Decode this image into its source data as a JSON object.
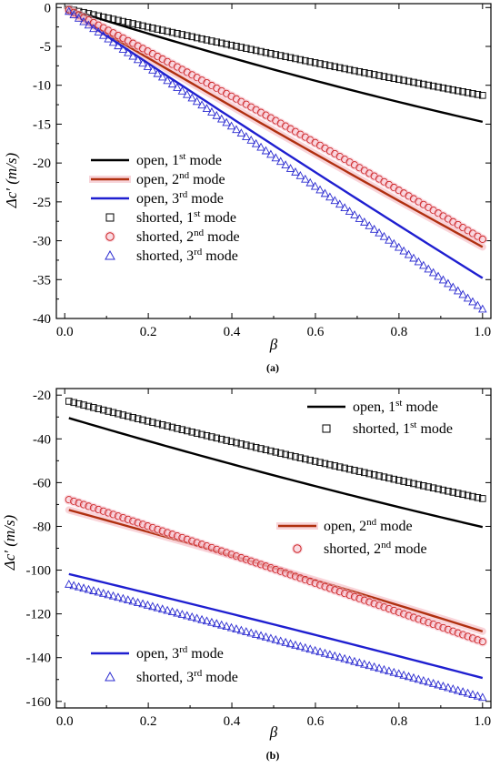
{
  "chart_data": [
    {
      "type": "line",
      "panel_label": "(a)",
      "xlabel": "β",
      "ylabel": "Δc′ (m/s)",
      "xlim": [
        -0.02,
        1.02
      ],
      "ylim": [
        -40,
        0.5
      ],
      "xticks": [
        0.0,
        0.2,
        0.4,
        0.6,
        0.8,
        1.0
      ],
      "xtick_labels": [
        "0.0",
        "0.2",
        "0.4",
        "0.6",
        "0.8",
        "1.0"
      ],
      "yticks": [
        0,
        -5,
        -10,
        -15,
        -20,
        -25,
        -30,
        -35,
        -40
      ],
      "ytick_labels": [
        "0",
        "-5",
        "-10",
        "-15",
        "-20",
        "-25",
        "-30",
        "-35",
        "-40"
      ],
      "grid": false,
      "legend_position": "lower-left",
      "series": [
        {
          "name": "open, 1st mode",
          "legend_base": "open, 1",
          "legend_sup": "st",
          "legend_tail": " mode",
          "style": "line",
          "color": "#000000",
          "x": [
            0.01,
            1.0
          ],
          "y": [
            -0.2,
            -14.7
          ],
          "curvature": -0.6
        },
        {
          "name": "open, 2nd mode",
          "legend_base": "open, 2",
          "legend_sup": "nd",
          "legend_tail": " mode",
          "style": "line",
          "color": "#b03010",
          "halo": "#f5b8c0",
          "x": [
            0.01,
            1.0
          ],
          "y": [
            -0.5,
            -30.8
          ],
          "curvature": -0.3
        },
        {
          "name": "open, 3rd mode",
          "legend_base": "open, 3",
          "legend_sup": "rd",
          "legend_tail": " mode",
          "style": "line",
          "color": "#1f1fd0",
          "x": [
            0.01,
            1.0
          ],
          "y": [
            -0.4,
            -34.8
          ],
          "curvature": -0.3
        },
        {
          "name": "shorted, 1st mode",
          "legend_base": "shorted, 1",
          "legend_sup": "st",
          "legend_tail": " mode",
          "style": "square",
          "color": "#000000",
          "x": [
            0.01,
            1.0
          ],
          "y": [
            -0.2,
            -11.3
          ],
          "curvature": -0.3,
          "count": 85
        },
        {
          "name": "shorted, 2nd mode",
          "legend_base": "shorted, 2",
          "legend_sup": "nd",
          "legend_tail": " mode",
          "style": "circle",
          "color": "#cc2222",
          "halo": "#f5c0cc",
          "x": [
            0.01,
            1.0
          ],
          "y": [
            -0.3,
            -29.8
          ],
          "curvature": 0.5,
          "count": 85
        },
        {
          "name": "shorted, 3rd mode",
          "legend_base": "shorted, 3",
          "legend_sup": "rd",
          "legend_tail": " mode",
          "style": "triangle",
          "color": "#2a2ad0",
          "x": [
            0.01,
            1.0
          ],
          "y": [
            -0.5,
            -38.8
          ],
          "curvature": 0.3,
          "count": 85
        }
      ]
    },
    {
      "type": "line",
      "panel_label": "(b)",
      "xlabel": "β",
      "ylabel": "Δc′ (m/s)",
      "xlim": [
        -0.02,
        1.02
      ],
      "ylim": [
        -163,
        -17
      ],
      "xticks": [
        0.0,
        0.2,
        0.4,
        0.6,
        0.8,
        1.0
      ],
      "xtick_labels": [
        "0.0",
        "0.2",
        "0.4",
        "0.6",
        "0.8",
        "1.0"
      ],
      "yticks": [
        -20,
        -40,
        -60,
        -80,
        -100,
        -120,
        -140,
        -160
      ],
      "ytick_labels": [
        "-20",
        "-40",
        "-60",
        "-80",
        "-100",
        "-120",
        "-140",
        "-160"
      ],
      "grid": false,
      "legend_position": "split",
      "series": [
        {
          "name": "open, 1st mode",
          "legend_base": "open, 1",
          "legend_sup": "st",
          "legend_tail": " mode",
          "style": "line",
          "color": "#000000",
          "x": [
            0.01,
            1.0
          ],
          "y": [
            -30.5,
            -80.3
          ],
          "curvature": -1.5
        },
        {
          "name": "shorted, 1st mode",
          "legend_base": "shorted, 1",
          "legend_sup": "st",
          "legend_tail": " mode",
          "style": "square",
          "color": "#000000",
          "x": [
            0.01,
            1.0
          ],
          "y": [
            -22.8,
            -67.3
          ],
          "curvature": -1.0,
          "count": 85
        },
        {
          "name": "open, 2nd mode",
          "legend_base": "open, 2",
          "legend_sup": "nd",
          "legend_tail": " mode",
          "style": "line",
          "color": "#b03010",
          "halo": "#f5b8c0",
          "x": [
            0.01,
            1.0
          ],
          "y": [
            -72.5,
            -128.0
          ],
          "curvature": 1.0
        },
        {
          "name": "shorted, 2nd mode",
          "legend_base": "shorted, 2",
          "legend_sup": "nd",
          "legend_tail": " mode",
          "style": "circle",
          "color": "#cc2222",
          "halo": "#f5c0cc",
          "x": [
            0.01,
            1.0
          ],
          "y": [
            -67.8,
            -132.7
          ],
          "curvature": 0.5,
          "count": 85
        },
        {
          "name": "open, 3rd mode",
          "legend_base": "open, 3",
          "legend_sup": "rd",
          "legend_tail": " mode",
          "style": "line",
          "color": "#1f1fd0",
          "x": [
            0.01,
            1.0
          ],
          "y": [
            -101.8,
            -149.3
          ],
          "curvature": 0.5
        },
        {
          "name": "shorted, 3rd mode",
          "legend_base": "shorted, 3",
          "legend_sup": "rd",
          "legend_tail": " mode",
          "style": "triangle",
          "color": "#2a2ad0",
          "x": [
            0.01,
            1.0
          ],
          "y": [
            -106.5,
            -158.2
          ],
          "curvature": 0.5,
          "count": 85
        }
      ]
    }
  ]
}
